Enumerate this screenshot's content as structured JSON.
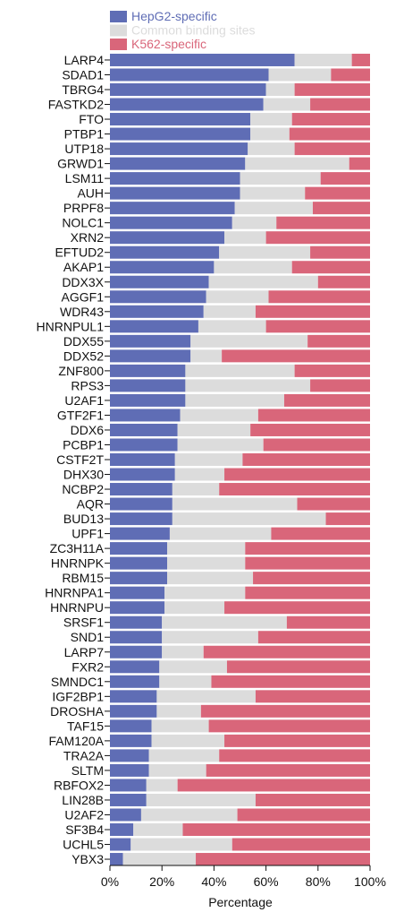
{
  "chart_data": {
    "type": "bar",
    "orientation": "horizontal",
    "stacked": true,
    "normalized_to": 100,
    "xlabel": "Percentage",
    "xlim": [
      0,
      100
    ],
    "xticks": [
      "0%",
      "20%",
      "40%",
      "60%",
      "80%",
      "100%"
    ],
    "grid": false,
    "legend_position": "top",
    "categories": [
      "LARP4",
      "SDAD1",
      "TBRG4",
      "FASTKD2",
      "FTO",
      "PTBP1",
      "UTP18",
      "GRWD1",
      "LSM11",
      "AUH",
      "PRPF8",
      "NOLC1",
      "XRN2",
      "EFTUD2",
      "AKAP1",
      "DDX3X",
      "AGGF1",
      "WDR43",
      "HNRNPUL1",
      "DDX55",
      "DDX52",
      "ZNF800",
      "RPS3",
      "U2AF1",
      "GTF2F1",
      "DDX6",
      "PCBP1",
      "CSTF2T",
      "DHX30",
      "NCBP2",
      "AQR",
      "BUD13",
      "UPF1",
      "ZC3H11A",
      "HNRNPK",
      "RBM15",
      "HNRNPA1",
      "HNRNPU",
      "SRSF1",
      "SND1",
      "LARP7",
      "FXR2",
      "SMNDC1",
      "IGF2BP1",
      "DROSHA",
      "TAF15",
      "FAM120A",
      "TRA2A",
      "SLTM",
      "RBFOX2",
      "LIN28B",
      "U2AF2",
      "SF3B4",
      "UCHL5",
      "YBX3"
    ],
    "series": [
      {
        "name": "HepG2-specific",
        "color": "#5f6db5",
        "values": [
          71,
          61,
          60,
          59,
          54,
          54,
          53,
          52,
          50,
          50,
          48,
          47,
          44,
          42,
          40,
          38,
          37,
          36,
          34,
          31,
          31,
          29,
          29,
          29,
          27,
          26,
          26,
          25,
          25,
          24,
          24,
          24,
          23,
          22,
          22,
          22,
          21,
          21,
          20,
          20,
          20,
          19,
          19,
          18,
          18,
          16,
          16,
          15,
          15,
          14,
          14,
          12,
          9,
          8,
          5
        ]
      },
      {
        "name": "Common binding sites",
        "color": "#dcdcdc",
        "values": [
          22,
          24,
          11,
          18,
          16,
          15,
          18,
          40,
          31,
          25,
          30,
          17,
          16,
          35,
          30,
          42,
          24,
          20,
          26,
          45,
          12,
          42,
          48,
          38,
          30,
          28,
          33,
          26,
          19,
          18,
          48,
          59,
          39,
          30,
          30,
          33,
          31,
          23,
          48,
          37,
          16,
          26,
          20,
          38,
          17,
          22,
          28,
          27,
          22,
          12,
          42,
          37,
          19,
          39,
          28
        ]
      },
      {
        "name": "K562-specific",
        "color": "#d9667a",
        "values": [
          7,
          15,
          29,
          23,
          30,
          31,
          29,
          8,
          19,
          25,
          22,
          36,
          40,
          23,
          30,
          20,
          39,
          44,
          40,
          24,
          57,
          29,
          23,
          33,
          43,
          46,
          41,
          49,
          56,
          58,
          28,
          17,
          38,
          48,
          48,
          45,
          48,
          56,
          32,
          43,
          64,
          55,
          61,
          44,
          65,
          62,
          56,
          58,
          63,
          74,
          44,
          51,
          72,
          53,
          67
        ]
      }
    ]
  }
}
